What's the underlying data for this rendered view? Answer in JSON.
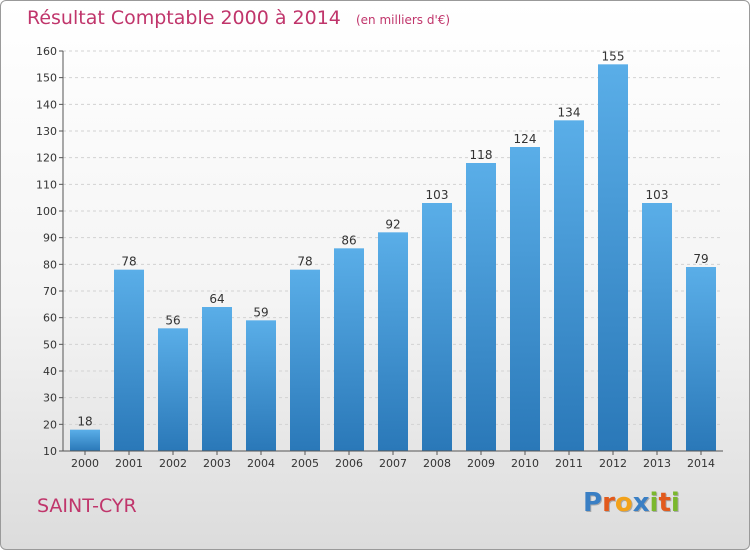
{
  "header": {
    "title": "Résultat Comptable 2000 à 2014",
    "unit": "(en milliers d'€)"
  },
  "footer": {
    "commune": "SAINT-CYR",
    "logo_text": "Proxiti",
    "logo_letters": [
      {
        "ch": "P",
        "color": "#3a7fc4"
      },
      {
        "ch": "r",
        "color": "#e25a1c"
      },
      {
        "ch": "o",
        "color": "#f2a21b"
      },
      {
        "ch": "x",
        "color": "#3a7fc4"
      },
      {
        "ch": "i",
        "color": "#7bb82d"
      },
      {
        "ch": "t",
        "color": "#e25a1c"
      },
      {
        "ch": "i",
        "color": "#7bb82d"
      }
    ]
  },
  "chart_data": {
    "type": "bar",
    "title": "Résultat Comptable 2000 à 2014",
    "subtitle": "(en milliers d'€)",
    "categories": [
      "2000",
      "2001",
      "2002",
      "2003",
      "2004",
      "2005",
      "2006",
      "2007",
      "2008",
      "2009",
      "2010",
      "2011",
      "2012",
      "2013",
      "2014"
    ],
    "values": [
      18,
      78,
      56,
      64,
      59,
      78,
      86,
      92,
      103,
      118,
      124,
      134,
      155,
      103,
      79
    ],
    "ylim": [
      10,
      160
    ],
    "ytick_step": 10,
    "grid": true,
    "bar_color_top": "#5aaee8",
    "bar_color_bottom": "#2a78b8",
    "show_value_labels": true
  }
}
